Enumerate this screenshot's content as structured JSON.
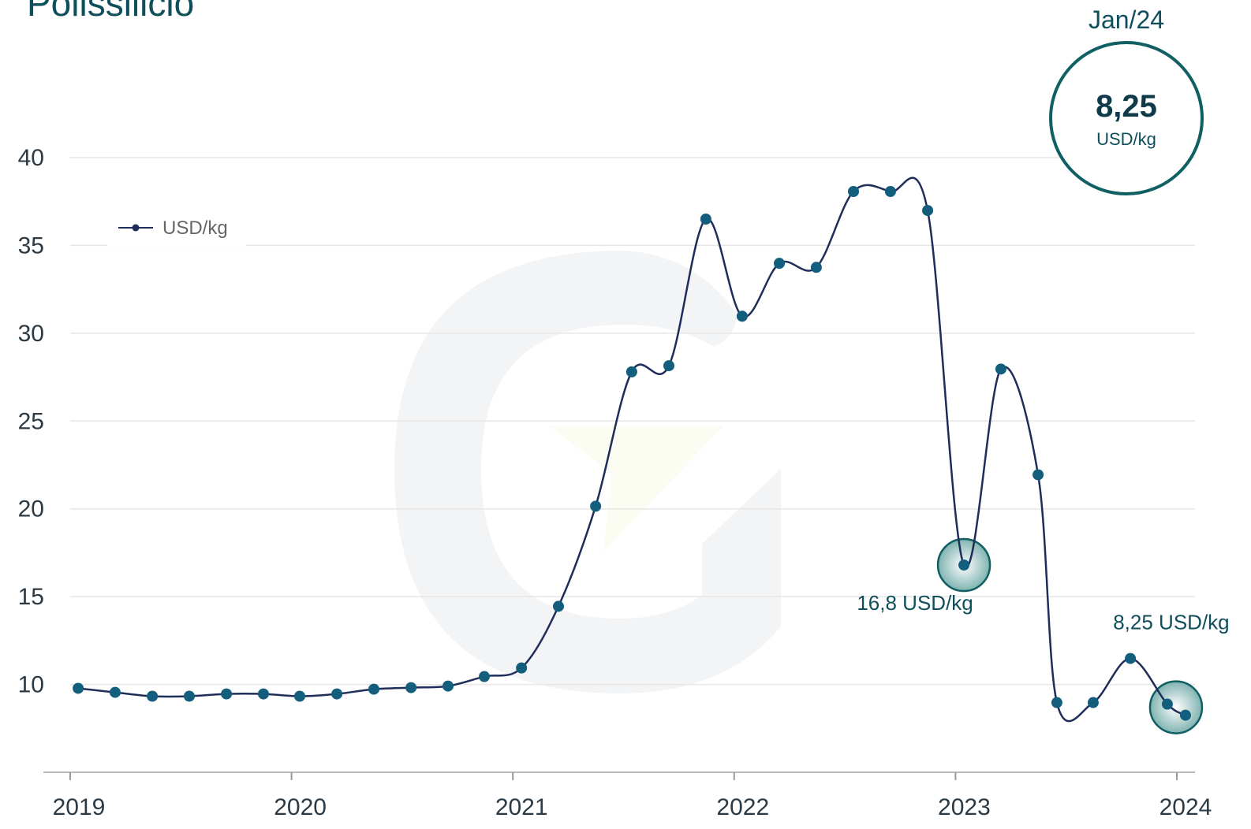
{
  "chart_data": {
    "type": "line",
    "title": "Polissilicio",
    "x": [
      2019.036,
      2019.203,
      2019.371,
      2019.538,
      2019.706,
      2019.873,
      2020.037,
      2020.205,
      2020.372,
      2020.54,
      2020.707,
      2020.871,
      2021.039,
      2021.206,
      2021.374,
      2021.537,
      2021.705,
      2021.872,
      2022.036,
      2022.204,
      2022.371,
      2022.539,
      2022.706,
      2022.874,
      2023.038,
      2023.205,
      2023.373,
      2023.458,
      2023.622,
      2023.79,
      2023.957,
      2024.039
    ],
    "series": [
      {
        "name": "USD/kg",
        "color": "#1f2d5a",
        "marker_color": "#135e7d",
        "values": [
          9.78,
          9.55,
          9.33,
          9.33,
          9.46,
          9.46,
          9.33,
          9.46,
          9.73,
          9.82,
          9.91,
          10.45,
          10.94,
          14.45,
          20.15,
          27.8,
          28.15,
          36.5,
          30.97,
          33.98,
          33.75,
          38.07,
          38.07,
          36.99,
          16.8,
          27.96,
          21.94,
          8.97,
          8.97,
          11.48,
          8.88,
          8.25
        ]
      }
    ],
    "xlim": [
      2019,
      2024.082
    ],
    "xticks": [
      2019,
      2020,
      2021,
      2022,
      2023,
      2024
    ],
    "ylim": [
      5,
      40
    ],
    "yticks": [
      10,
      15,
      20,
      25,
      30,
      35,
      40
    ],
    "grid": true,
    "annotations": [
      {
        "text": "16,8 USD/kg",
        "point": 24
      },
      {
        "text": "8,25 USD/kg",
        "point": 31
      }
    ],
    "badge": {
      "period": "Jan/24",
      "value": "8,25",
      "unit": "USD/kg"
    }
  }
}
